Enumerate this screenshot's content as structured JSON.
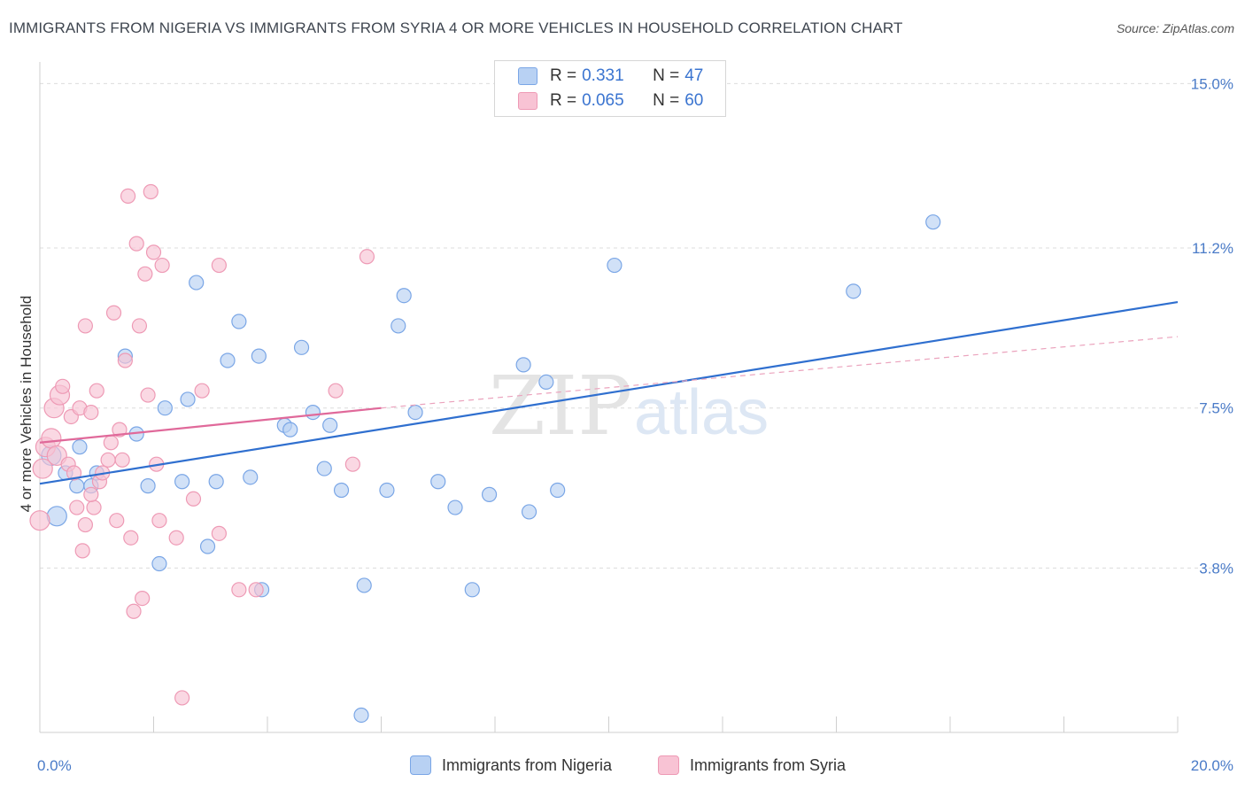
{
  "title": "IMMIGRANTS FROM NIGERIA VS IMMIGRANTS FROM SYRIA 4 OR MORE VEHICLES IN HOUSEHOLD CORRELATION CHART",
  "source": "Source: ZipAtlas.com",
  "watermark": {
    "zip": "ZIP",
    "atlas": "atlas"
  },
  "legend": {
    "rows": [
      {
        "r_label": "R = ",
        "r_value": "0.331",
        "n_label": "N = ",
        "n_value": "47",
        "color": "#a9c7f0"
      },
      {
        "r_label": "R = ",
        "r_value": "0.065",
        "n_label": "N = ",
        "n_value": "60",
        "color": "#f7b8cc"
      }
    ]
  },
  "bottom_legend": [
    {
      "label": "Immigrants from Nigeria",
      "color": "#b8d1f3"
    },
    {
      "label": "Immigrants from Syria",
      "color": "#f8c3d4"
    }
  ],
  "chart_data": {
    "type": "scatter",
    "title": "IMMIGRANTS FROM NIGERIA VS IMMIGRANTS FROM SYRIA 4 OR MORE VEHICLES IN HOUSEHOLD CORRELATION CHART",
    "xlabel": "",
    "ylabel": "4 or more Vehicles in Household",
    "xlim": [
      0,
      20
    ],
    "ylim": [
      0,
      15.5
    ],
    "x_tick_labels": [
      "0.0%",
      "20.0%"
    ],
    "y_ticks": [
      3.8,
      7.5,
      11.2,
      15.0
    ],
    "y_tick_labels": [
      "3.8%",
      "7.5%",
      "11.2%",
      "15.0%"
    ],
    "grid": true,
    "series": [
      {
        "name": "Immigrants from Nigeria",
        "color": "#7aa6e6",
        "fill": "#b8d1f3",
        "trend": {
          "x": [
            0,
            20
          ],
          "y": [
            5.75,
            9.95
          ],
          "color": "#2f6fcf"
        },
        "points": [
          [
            0.3,
            5.0
          ],
          [
            0.2,
            6.4
          ],
          [
            0.45,
            6.0
          ],
          [
            0.65,
            5.7
          ],
          [
            0.7,
            6.6
          ],
          [
            0.9,
            5.7
          ],
          [
            1.0,
            6.0
          ],
          [
            1.5,
            8.7
          ],
          [
            1.7,
            6.9
          ],
          [
            1.9,
            5.7
          ],
          [
            2.1,
            3.9
          ],
          [
            2.2,
            7.5
          ],
          [
            2.5,
            5.8
          ],
          [
            2.6,
            7.7
          ],
          [
            2.75,
            10.4
          ],
          [
            2.95,
            4.3
          ],
          [
            3.1,
            5.8
          ],
          [
            3.3,
            8.6
          ],
          [
            3.5,
            9.5
          ],
          [
            3.7,
            5.9
          ],
          [
            3.9,
            3.3
          ],
          [
            3.85,
            8.7
          ],
          [
            4.3,
            7.1
          ],
          [
            4.4,
            7.0
          ],
          [
            4.6,
            8.9
          ],
          [
            4.8,
            7.4
          ],
          [
            5.0,
            6.1
          ],
          [
            5.1,
            7.1
          ],
          [
            5.3,
            5.6
          ],
          [
            5.7,
            3.4
          ],
          [
            5.65,
            0.4
          ],
          [
            6.1,
            5.6
          ],
          [
            6.3,
            9.4
          ],
          [
            6.4,
            10.1
          ],
          [
            6.6,
            7.4
          ],
          [
            7.0,
            5.8
          ],
          [
            7.3,
            5.2
          ],
          [
            7.6,
            3.3
          ],
          [
            7.9,
            5.5
          ],
          [
            8.6,
            5.1
          ],
          [
            8.5,
            8.5
          ],
          [
            8.9,
            8.1
          ],
          [
            9.1,
            5.6
          ],
          [
            10.1,
            10.8
          ],
          [
            14.3,
            10.2
          ],
          [
            15.7,
            11.8
          ]
        ]
      },
      {
        "name": "Immigrants from Syria",
        "color": "#ee9ab5",
        "fill": "#f8c3d4",
        "trend": {
          "x": [
            0,
            6.0
          ],
          "y": [
            6.7,
            7.5
          ],
          "color": "#e0699a"
        },
        "trend_ext": {
          "x": [
            6.0,
            20
          ],
          "y": [
            7.5,
            9.15
          ],
          "color": "#eba3bd"
        },
        "points": [
          [
            0.0,
            4.9
          ],
          [
            0.05,
            6.1
          ],
          [
            0.1,
            6.6
          ],
          [
            0.2,
            6.8
          ],
          [
            0.3,
            6.4
          ],
          [
            0.25,
            7.5
          ],
          [
            0.35,
            7.8
          ],
          [
            0.4,
            8.0
          ],
          [
            0.5,
            6.2
          ],
          [
            0.55,
            7.3
          ],
          [
            0.6,
            6.0
          ],
          [
            0.65,
            5.2
          ],
          [
            0.7,
            7.5
          ],
          [
            0.75,
            4.2
          ],
          [
            0.8,
            4.8
          ],
          [
            0.8,
            9.4
          ],
          [
            0.9,
            7.4
          ],
          [
            0.95,
            5.2
          ],
          [
            0.9,
            5.5
          ],
          [
            1.0,
            7.9
          ],
          [
            1.05,
            5.8
          ],
          [
            1.1,
            6.0
          ],
          [
            1.2,
            6.3
          ],
          [
            1.25,
            6.7
          ],
          [
            1.3,
            9.7
          ],
          [
            1.35,
            4.9
          ],
          [
            1.4,
            7.0
          ],
          [
            1.45,
            6.3
          ],
          [
            1.5,
            8.6
          ],
          [
            1.55,
            12.4
          ],
          [
            1.6,
            4.5
          ],
          [
            1.65,
            2.8
          ],
          [
            1.7,
            11.3
          ],
          [
            1.75,
            9.4
          ],
          [
            1.8,
            3.1
          ],
          [
            1.85,
            10.6
          ],
          [
            1.9,
            7.8
          ],
          [
            1.95,
            12.5
          ],
          [
            2.0,
            11.1
          ],
          [
            2.05,
            6.2
          ],
          [
            2.1,
            4.9
          ],
          [
            2.15,
            10.8
          ],
          [
            2.4,
            4.5
          ],
          [
            2.5,
            0.8
          ],
          [
            2.7,
            5.4
          ],
          [
            2.85,
            7.9
          ],
          [
            3.15,
            10.8
          ],
          [
            3.15,
            4.6
          ],
          [
            3.5,
            3.3
          ],
          [
            3.8,
            3.3
          ],
          [
            5.2,
            7.9
          ],
          [
            5.5,
            6.2
          ],
          [
            5.75,
            11.0
          ]
        ]
      }
    ]
  }
}
